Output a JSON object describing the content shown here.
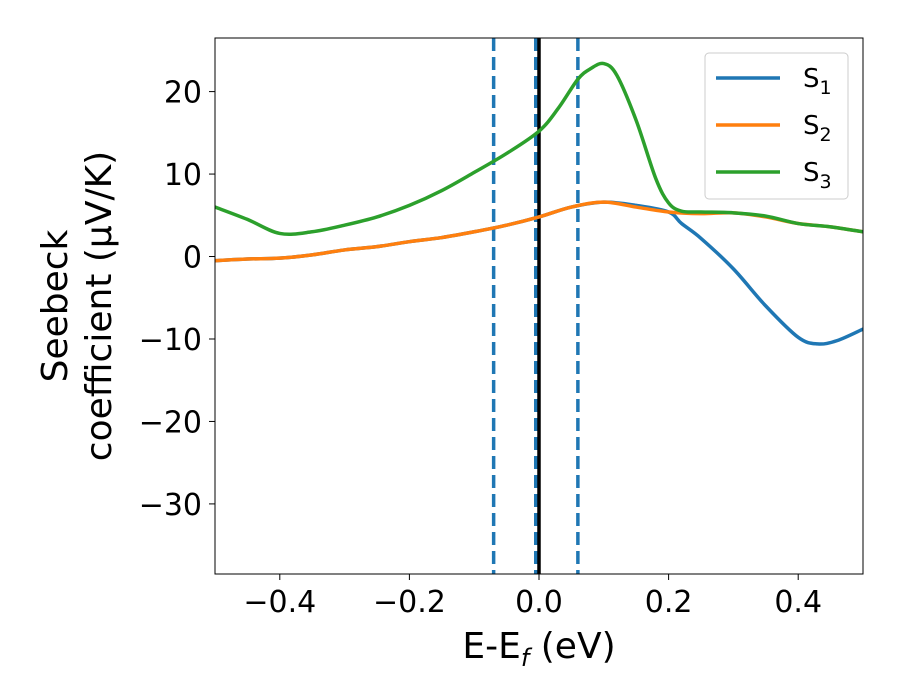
{
  "chart_data": {
    "type": "line",
    "xlabel": "E-E",
    "xlabel_sub": "f",
    "xlabel_tail": " (eV)",
    "ylabel_line1": "Seebeck",
    "ylabel_line2": "coefficient  (μV/K)",
    "xlim": [
      -0.5,
      0.5
    ],
    "ylim": [
      -38.5,
      26.5
    ],
    "xticks": [
      -0.4,
      -0.2,
      0.0,
      0.2,
      0.4
    ],
    "xtick_labels": [
      "−0.4",
      "−0.2",
      "0.0",
      "0.2",
      "0.4"
    ],
    "yticks": [
      -30,
      -20,
      -10,
      0,
      10,
      20
    ],
    "ytick_labels": [
      "−30",
      "−20",
      "−10",
      "0",
      "10",
      "20"
    ],
    "grid": false,
    "legend_position": "top-right",
    "vlines": [
      {
        "x": -0.07,
        "style": "dashed",
        "color": "#1f77b4"
      },
      {
        "x": -0.005,
        "style": "dashed",
        "color": "#1f77b4"
      },
      {
        "x": 0.06,
        "style": "dashed",
        "color": "#1f77b4"
      },
      {
        "x": 0.0,
        "style": "solid",
        "color": "#000000"
      }
    ],
    "series": [
      {
        "name": "S",
        "sub": "1",
        "color": "#1f77b4",
        "x": [
          -0.5,
          -0.45,
          -0.4,
          -0.35,
          -0.3,
          -0.25,
          -0.2,
          -0.15,
          -0.1,
          -0.05,
          0.0,
          0.05,
          0.1,
          0.15,
          0.2,
          0.22,
          0.25,
          0.3,
          0.35,
          0.4,
          0.43,
          0.46,
          0.5
        ],
        "values": [
          -0.5,
          -0.3,
          -0.2,
          0.2,
          0.8,
          1.2,
          1.8,
          2.3,
          3.0,
          3.8,
          4.8,
          6.0,
          6.6,
          6.2,
          5.4,
          4.0,
          2.2,
          -1.5,
          -6.0,
          -9.8,
          -10.6,
          -10.2,
          -8.8
        ]
      },
      {
        "name": "S",
        "sub": "2",
        "color": "#ff7f0e",
        "x": [
          -0.5,
          -0.45,
          -0.4,
          -0.35,
          -0.3,
          -0.25,
          -0.2,
          -0.15,
          -0.1,
          -0.05,
          0.0,
          0.05,
          0.1,
          0.15,
          0.2,
          0.25,
          0.3,
          0.35,
          0.4,
          0.45,
          0.5
        ],
        "values": [
          -0.5,
          -0.3,
          -0.2,
          0.2,
          0.8,
          1.2,
          1.8,
          2.3,
          3.0,
          3.8,
          4.8,
          6.0,
          6.6,
          6.0,
          5.4,
          5.2,
          5.3,
          4.8,
          4.0,
          3.6,
          3.0
        ]
      },
      {
        "name": "S",
        "sub": "3",
        "color": "#2ca02c",
        "x": [
          -0.5,
          -0.45,
          -0.4,
          -0.35,
          -0.3,
          -0.25,
          -0.2,
          -0.15,
          -0.1,
          -0.05,
          0.0,
          0.03,
          0.06,
          0.08,
          0.1,
          0.12,
          0.15,
          0.18,
          0.2,
          0.22,
          0.25,
          0.3,
          0.35,
          0.4,
          0.45,
          0.5
        ],
        "values": [
          6.0,
          4.5,
          2.8,
          3.0,
          3.8,
          4.8,
          6.2,
          8.0,
          10.2,
          12.5,
          15.2,
          18.0,
          21.5,
          22.8,
          23.4,
          22.0,
          16.5,
          9.5,
          6.5,
          5.5,
          5.4,
          5.3,
          4.9,
          4.0,
          3.6,
          3.0
        ]
      }
    ]
  }
}
